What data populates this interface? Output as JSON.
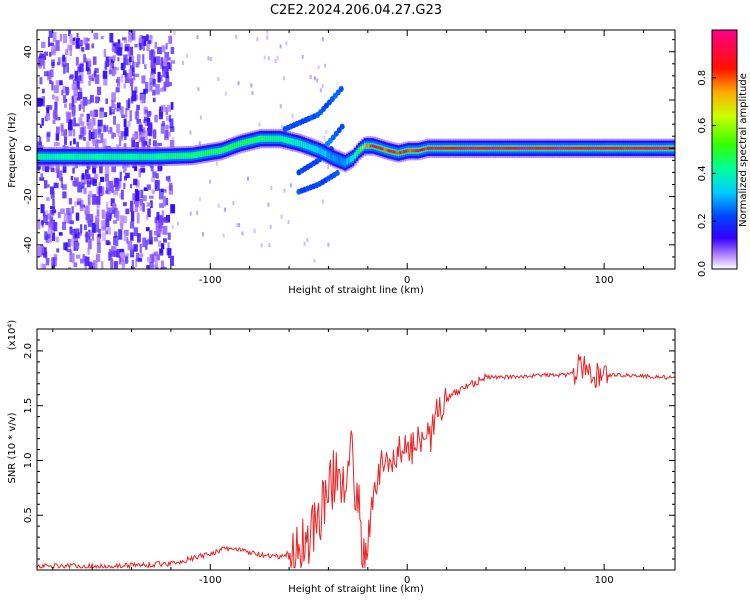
{
  "title": "C2E2.2024.206.04.27.G23",
  "chart_data": [
    {
      "type": "heatmap",
      "name": "spectrogram",
      "xlabel": "Height of straight line (km)",
      "ylabel": "Frequency (Hz)",
      "xlim": [
        -188,
        136
      ],
      "ylim": [
        -50,
        49
      ],
      "xticks": [
        -100,
        0,
        100
      ],
      "xtick_labels": [
        "-100",
        "0",
        "100"
      ],
      "yticks": [
        -40,
        -20,
        0,
        20,
        40
      ],
      "ytick_labels": [
        "-40",
        "-20",
        "0",
        "20",
        "40"
      ],
      "colorbar": {
        "label": "Normalized spectral amplitude",
        "range": [
          0,
          1
        ],
        "ticks": [
          0.0,
          0.2,
          0.4,
          0.6,
          0.8
        ],
        "tick_labels": [
          "0.0",
          "0.2",
          "0.4",
          "0.6",
          "0.8"
        ]
      },
      "ridge": {
        "x": [
          -188,
          -160,
          -130,
          -110,
          -95,
          -85,
          -75,
          -65,
          -55,
          -45,
          -38,
          -32,
          -28,
          -25,
          -22,
          -18,
          -14,
          -10,
          -5,
          0,
          5,
          10,
          20,
          40,
          60,
          80,
          100,
          120,
          136
        ],
        "freq": [
          -3.5,
          -3.5,
          -3.5,
          -3,
          -1,
          2,
          4,
          4,
          2,
          -1,
          -4,
          -6,
          -4,
          -1,
          1,
          1,
          0,
          -1,
          -2,
          -1,
          -1,
          0,
          0,
          0,
          0,
          0,
          0,
          0,
          0
        ],
        "amplitude": [
          0.45,
          0.45,
          0.45,
          0.5,
          0.55,
          0.55,
          0.5,
          0.45,
          0.4,
          0.35,
          0.3,
          0.3,
          0.4,
          0.55,
          0.8,
          0.95,
          0.9,
          0.9,
          0.9,
          0.9,
          0.95,
          0.95,
          1.0,
          1.0,
          1.0,
          1.0,
          0.95,
          1.0,
          1.0
        ]
      },
      "secondary_ridges": [
        {
          "x": [
            -62,
            -45,
            -33
          ],
          "freq": [
            8,
            14,
            25
          ],
          "amplitude": 0.2
        },
        {
          "x": [
            -55,
            -45,
            -38
          ],
          "freq": [
            -10,
            -5,
            0
          ],
          "amplitude": 0.2
        },
        {
          "x": [
            -55,
            -45,
            -35
          ],
          "freq": [
            -18,
            -15,
            -10
          ],
          "amplitude": 0.2
        },
        {
          "x": [
            -45,
            -38,
            -32
          ],
          "freq": [
            -2,
            4,
            10
          ],
          "amplitude": 0.22
        }
      ]
    },
    {
      "type": "line",
      "name": "snr",
      "xlabel": "Height of straight line (km)",
      "ylabel": "SNR (10 * v/v)",
      "ylabel_multiplier": "(x10⁴)",
      "xlim": [
        -188,
        136
      ],
      "ylim": [
        0,
        2.2
      ],
      "xticks": [
        -100,
        0,
        100
      ],
      "xtick_labels": [
        "-100",
        "0",
        "100"
      ],
      "yticks": [
        0.5,
        1.0,
        1.5,
        2.0
      ],
      "ytick_labels": [
        "0.5",
        "1.0",
        "1.5",
        "2.0"
      ],
      "series": [
        {
          "name": "SNR",
          "color": "#ee2222",
          "x": [
            -188,
            -175,
            -160,
            -145,
            -130,
            -120,
            -110,
            -100,
            -95,
            -90,
            -85,
            -80,
            -75,
            -70,
            -65,
            -60,
            -55,
            -50,
            -45,
            -40,
            -36,
            -32,
            -30,
            -28,
            -26,
            -24,
            -22,
            -20,
            -18,
            -16,
            -14,
            -12,
            -10,
            -8,
            -6,
            -4,
            -2,
            0,
            2,
            4,
            6,
            8,
            10,
            12,
            14,
            16,
            18,
            20,
            25,
            30,
            35,
            40,
            50,
            60,
            70,
            80,
            85,
            88,
            90,
            92,
            95,
            98,
            100,
            110,
            120,
            130,
            136
          ],
          "values": [
            0.03,
            0.04,
            0.03,
            0.04,
            0.05,
            0.06,
            0.1,
            0.15,
            0.18,
            0.2,
            0.18,
            0.16,
            0.14,
            0.12,
            0.12,
            0.15,
            0.2,
            0.3,
            0.5,
            0.7,
            0.9,
            0.85,
            1.1,
            1.0,
            0.7,
            0.45,
            0.15,
            0.08,
            0.55,
            0.8,
            0.9,
            1.0,
            0.95,
            1.0,
            1.05,
            1.1,
            1.05,
            1.15,
            1.1,
            1.15,
            1.2,
            1.25,
            1.35,
            1.2,
            1.4,
            1.5,
            1.45,
            1.55,
            1.62,
            1.68,
            1.72,
            1.76,
            1.76,
            1.77,
            1.78,
            1.78,
            1.8,
            1.85,
            1.9,
            1.75,
            1.78,
            1.8,
            1.78,
            1.78,
            1.77,
            1.76,
            1.75
          ]
        }
      ]
    }
  ]
}
